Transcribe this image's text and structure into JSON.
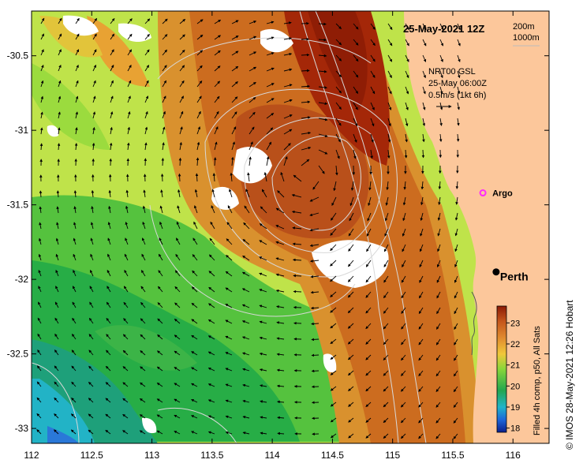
{
  "map": {
    "title": "25-May-2021 12Z",
    "depth_legend": {
      "line1": "200m",
      "line2": "1000m"
    },
    "current_legend": {
      "line1": "NRT00 GSL",
      "line2": "25-May 06:00Z",
      "line3": "0.5m/s (1kt 6h)"
    },
    "lon_ticks": [
      "112",
      "112.5",
      "113",
      "113.5",
      "114",
      "114.5",
      "115",
      "115.5",
      "116"
    ],
    "lat_ticks": [
      "-30.5",
      "-31",
      "-31.5",
      "-32",
      "-32.5",
      "-33"
    ],
    "lon_range": [
      112,
      116.3
    ],
    "lat_range": [
      -33.1,
      -30.2
    ],
    "places": [
      {
        "name": "Perth",
        "lon": 115.86,
        "lat": -31.95
      },
      {
        "name": "Argo",
        "lon": 115.75,
        "lat": -31.42
      }
    ],
    "colorbar": {
      "label": "Filled 4h comp, p50, All Sats",
      "ticks": [
        "23",
        "22",
        "21",
        "20",
        "19",
        "18"
      ],
      "range": [
        17.8,
        23.8
      ]
    },
    "credit": "© IMOS 28-May-2021 12:26 Hobart",
    "colors": {
      "land": "#fcc79b",
      "warm": "#a42708",
      "cool": "#1e9c52",
      "perth_marker": "#000000",
      "argo_marker": "#ff2bff"
    }
  }
}
